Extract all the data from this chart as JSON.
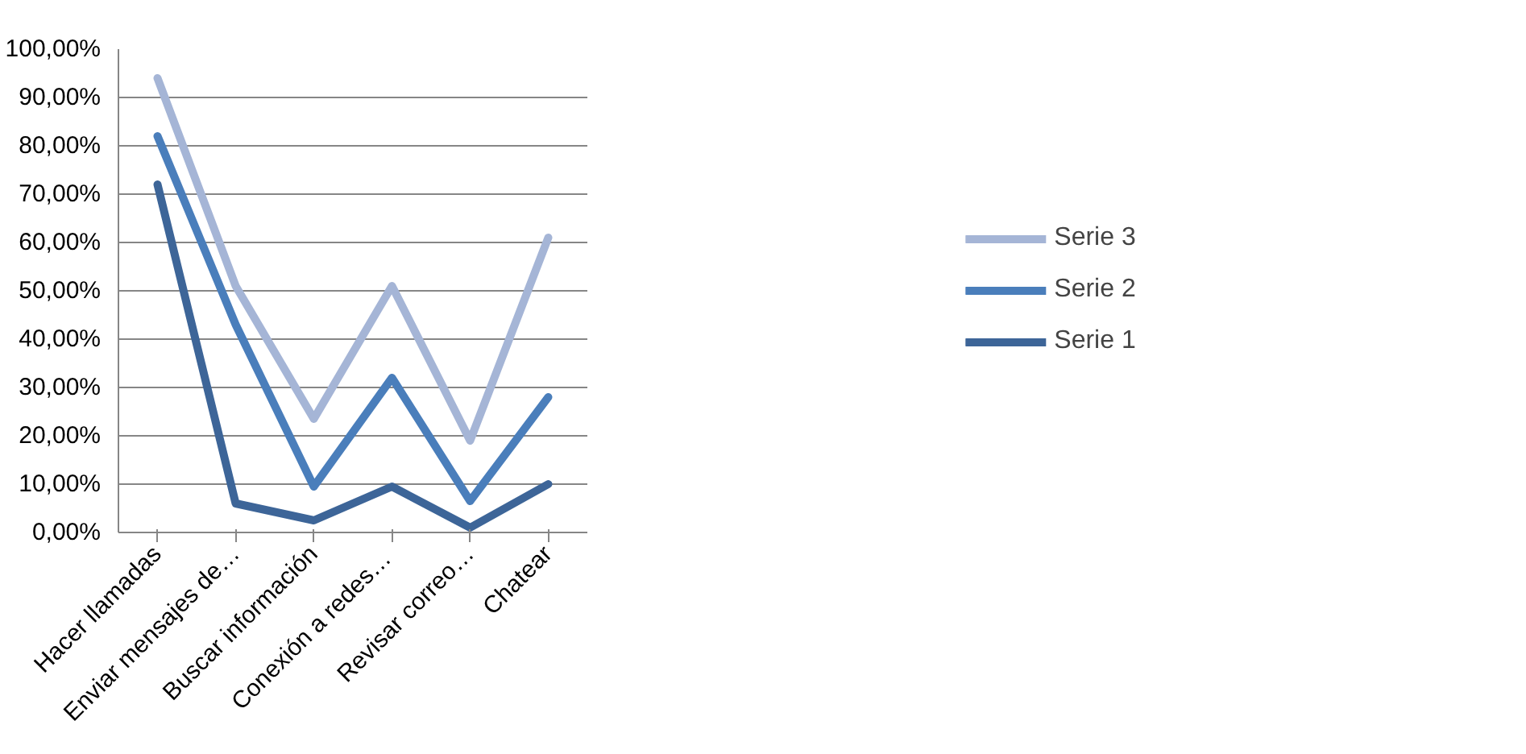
{
  "chart_data": {
    "type": "line",
    "categories": [
      "Hacer llamadas",
      "Enviar mensajes de…",
      "Buscar información",
      "Conexión  a redes…",
      "Revisar correo…",
      "Chatear"
    ],
    "series": [
      {
        "name": "Serie 3",
        "color": "#a5b5d6",
        "values": [
          94,
          51,
          23.5,
          51,
          19,
          61
        ]
      },
      {
        "name": "Serie 2",
        "color": "#4a7ebb",
        "values": [
          82,
          43,
          9.5,
          32,
          6.5,
          28
        ]
      },
      {
        "name": "Serie 1",
        "color": "#3d6598",
        "values": [
          72,
          6,
          2.5,
          9.5,
          1,
          10
        ]
      }
    ],
    "ylim": [
      0,
      100
    ],
    "yticks": [
      {
        "value": 0,
        "label": "0,00%"
      },
      {
        "value": 10,
        "label": "10,00%"
      },
      {
        "value": 20,
        "label": "20,00%"
      },
      {
        "value": 30,
        "label": "30,00%"
      },
      {
        "value": 40,
        "label": "40,00%"
      },
      {
        "value": 50,
        "label": "50,00%"
      },
      {
        "value": 60,
        "label": "60,00%"
      },
      {
        "value": 70,
        "label": "70,00%"
      },
      {
        "value": 80,
        "label": "80,00%"
      },
      {
        "value": 90,
        "label": "90,00%"
      },
      {
        "value": 100,
        "label": "100,00%"
      }
    ],
    "grid": "y",
    "legend": "right",
    "marker": "none",
    "line_style": "solid"
  }
}
